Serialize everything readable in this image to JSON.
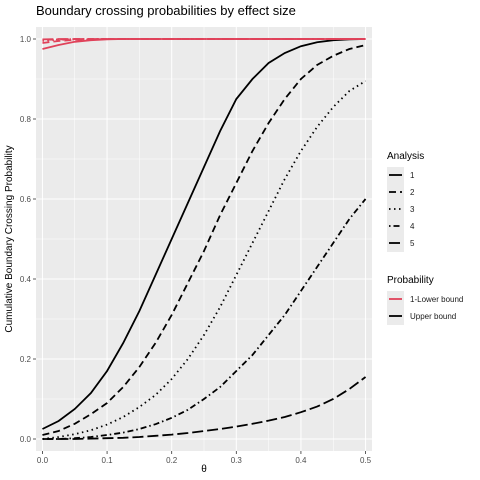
{
  "chart_data": {
    "type": "line",
    "title": "Boundary crossing probabilities by effect size",
    "xlabel": "θ",
    "ylabel": "Cumulative Boundary Crossing Probability",
    "xlim": [
      -0.01,
      0.51
    ],
    "ylim": [
      -0.03,
      1.03
    ],
    "x_ticks": [
      "0.0",
      "0.1",
      "0.2",
      "0.3",
      "0.4",
      "0.5"
    ],
    "y_ticks": [
      "0.0",
      "0.2",
      "0.4",
      "0.6",
      "0.8",
      "1.0"
    ],
    "grid": true,
    "background": "#ebebeb",
    "legend_position": "right",
    "x": [
      0.0,
      0.025,
      0.05,
      0.075,
      0.1,
      0.125,
      0.15,
      0.175,
      0.2,
      0.225,
      0.25,
      0.275,
      0.3,
      0.325,
      0.35,
      0.375,
      0.4,
      0.425,
      0.45,
      0.475,
      0.5
    ],
    "series": [
      {
        "analysis": "1",
        "probability": "Upper bound",
        "color": "#000000",
        "dash": "solid",
        "values": [
          0.025,
          0.045,
          0.075,
          0.115,
          0.17,
          0.24,
          0.32,
          0.41,
          0.5,
          0.59,
          0.68,
          0.77,
          0.85,
          0.9,
          0.94,
          0.965,
          0.982,
          0.992,
          0.997,
          0.999,
          1.0
        ]
      },
      {
        "analysis": "2",
        "probability": "Upper bound",
        "color": "#000000",
        "dash": "dashed",
        "values": [
          0.01,
          0.02,
          0.038,
          0.062,
          0.09,
          0.13,
          0.18,
          0.24,
          0.31,
          0.39,
          0.47,
          0.56,
          0.64,
          0.72,
          0.79,
          0.85,
          0.9,
          0.935,
          0.958,
          0.975,
          0.985
        ]
      },
      {
        "analysis": "3",
        "probability": "Upper bound",
        "color": "#000000",
        "dash": "dotted",
        "values": [
          0.0,
          0.005,
          0.012,
          0.022,
          0.036,
          0.055,
          0.08,
          0.11,
          0.15,
          0.2,
          0.26,
          0.33,
          0.41,
          0.49,
          0.57,
          0.65,
          0.72,
          0.78,
          0.83,
          0.87,
          0.895
        ]
      },
      {
        "analysis": "4",
        "probability": "Upper bound",
        "color": "#000000",
        "dash": "dotdash",
        "values": [
          0.0,
          0.0,
          0.002,
          0.005,
          0.01,
          0.016,
          0.025,
          0.037,
          0.053,
          0.073,
          0.1,
          0.13,
          0.17,
          0.21,
          0.26,
          0.31,
          0.37,
          0.43,
          0.49,
          0.55,
          0.6
        ]
      },
      {
        "analysis": "5",
        "probability": "Upper bound",
        "color": "#000000",
        "dash": "longdash",
        "values": [
          0.0,
          0.0,
          0.0,
          0.001,
          0.002,
          0.003,
          0.005,
          0.008,
          0.011,
          0.015,
          0.02,
          0.025,
          0.031,
          0.038,
          0.046,
          0.055,
          0.067,
          0.081,
          0.1,
          0.125,
          0.155
        ]
      },
      {
        "analysis": "1",
        "probability": "1-Lower bound",
        "color": "#e0425a",
        "dash": "solid",
        "values": [
          0.975,
          0.985,
          0.993,
          0.997,
          0.999,
          1.0,
          1.0,
          1.0,
          1.0,
          1.0,
          1.0,
          1.0,
          1.0,
          1.0,
          1.0,
          1.0,
          1.0,
          1.0,
          1.0,
          1.0,
          1.0
        ]
      },
      {
        "analysis": "2",
        "probability": "1-Lower bound",
        "color": "#e0425a",
        "dash": "dashed",
        "values": [
          0.99,
          0.995,
          0.998,
          0.999,
          1.0,
          1.0,
          1.0,
          1.0,
          1.0,
          1.0,
          1.0,
          1.0,
          1.0,
          1.0,
          1.0,
          1.0,
          1.0,
          1.0,
          1.0,
          1.0,
          1.0
        ]
      },
      {
        "analysis": "3",
        "probability": "1-Lower bound",
        "color": "#e0425a",
        "dash": "dotted",
        "values": [
          0.995,
          0.998,
          0.999,
          1.0,
          1.0,
          1.0,
          1.0,
          1.0,
          1.0,
          1.0,
          1.0,
          1.0,
          1.0,
          1.0,
          1.0,
          1.0,
          1.0,
          1.0,
          1.0,
          1.0,
          1.0
        ]
      },
      {
        "analysis": "4",
        "probability": "1-Lower bound",
        "color": "#e0425a",
        "dash": "dotdash",
        "values": [
          0.998,
          0.999,
          1.0,
          1.0,
          1.0,
          1.0,
          1.0,
          1.0,
          1.0,
          1.0,
          1.0,
          1.0,
          1.0,
          1.0,
          1.0,
          1.0,
          1.0,
          1.0,
          1.0,
          1.0,
          1.0
        ]
      },
      {
        "analysis": "5",
        "probability": "1-Lower bound",
        "color": "#e0425a",
        "dash": "longdash",
        "values": [
          0.999,
          1.0,
          1.0,
          1.0,
          1.0,
          1.0,
          1.0,
          1.0,
          1.0,
          1.0,
          1.0,
          1.0,
          1.0,
          1.0,
          1.0,
          1.0,
          1.0,
          1.0,
          1.0,
          1.0,
          1.0
        ]
      }
    ],
    "legend_analysis": {
      "title": "Analysis",
      "items": [
        {
          "label": "1",
          "dash": "solid"
        },
        {
          "label": "2",
          "dash": "dashed"
        },
        {
          "label": "3",
          "dash": "dotted"
        },
        {
          "label": "4",
          "dash": "dotdash"
        },
        {
          "label": "5",
          "dash": "longdash"
        }
      ]
    },
    "legend_probability": {
      "title": "Probability",
      "items": [
        {
          "label": "1-Lower bound",
          "color": "#e0425a"
        },
        {
          "label": "Upper bound",
          "color": "#000000"
        }
      ]
    }
  }
}
